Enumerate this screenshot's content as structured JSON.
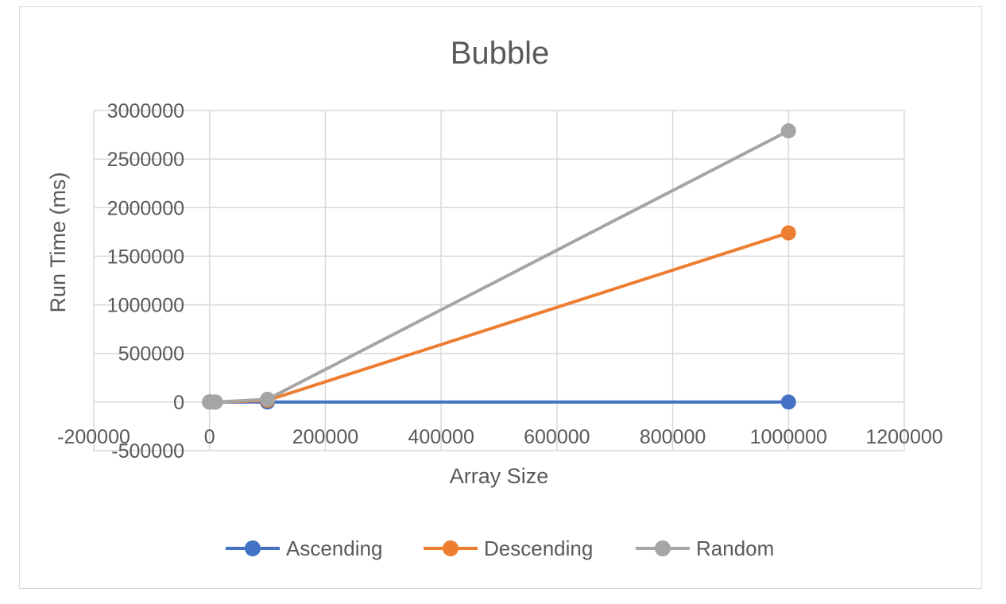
{
  "chart_data": {
    "type": "line",
    "title": "Bubble",
    "xlabel": "Array Size",
    "ylabel": "Run Time (ms)",
    "xlim": [
      -200000,
      1200000
    ],
    "ylim": [
      -500000,
      3000000
    ],
    "x_ticks": [
      -200000,
      0,
      200000,
      400000,
      600000,
      800000,
      1000000,
      1200000
    ],
    "y_ticks": [
      -500000,
      0,
      500000,
      1000000,
      1500000,
      2000000,
      2500000,
      3000000
    ],
    "x_tick_labels": [
      "-200000",
      "0",
      "200000",
      "400000",
      "600000",
      "800000",
      "1000000",
      "1200000"
    ],
    "y_tick_labels": [
      "-500000",
      "0",
      "500000",
      "1000000",
      "1500000",
      "2000000",
      "2500000",
      "3000000"
    ],
    "grid": true,
    "legend_position": "bottom",
    "x": [
      10,
      100,
      1000,
      10000,
      100000,
      1000000
    ],
    "series": [
      {
        "name": "Ascending",
        "color": "#4472c4",
        "values": [
          0,
          0,
          0,
          0,
          0,
          0
        ]
      },
      {
        "name": "Descending",
        "color": "#ed7d31",
        "values": [
          0,
          0,
          0,
          200,
          17000,
          1740000
        ]
      },
      {
        "name": "Random",
        "color": "#a5a5a5",
        "values": [
          0,
          0,
          0,
          300,
          28000,
          2790000
        ]
      }
    ]
  }
}
